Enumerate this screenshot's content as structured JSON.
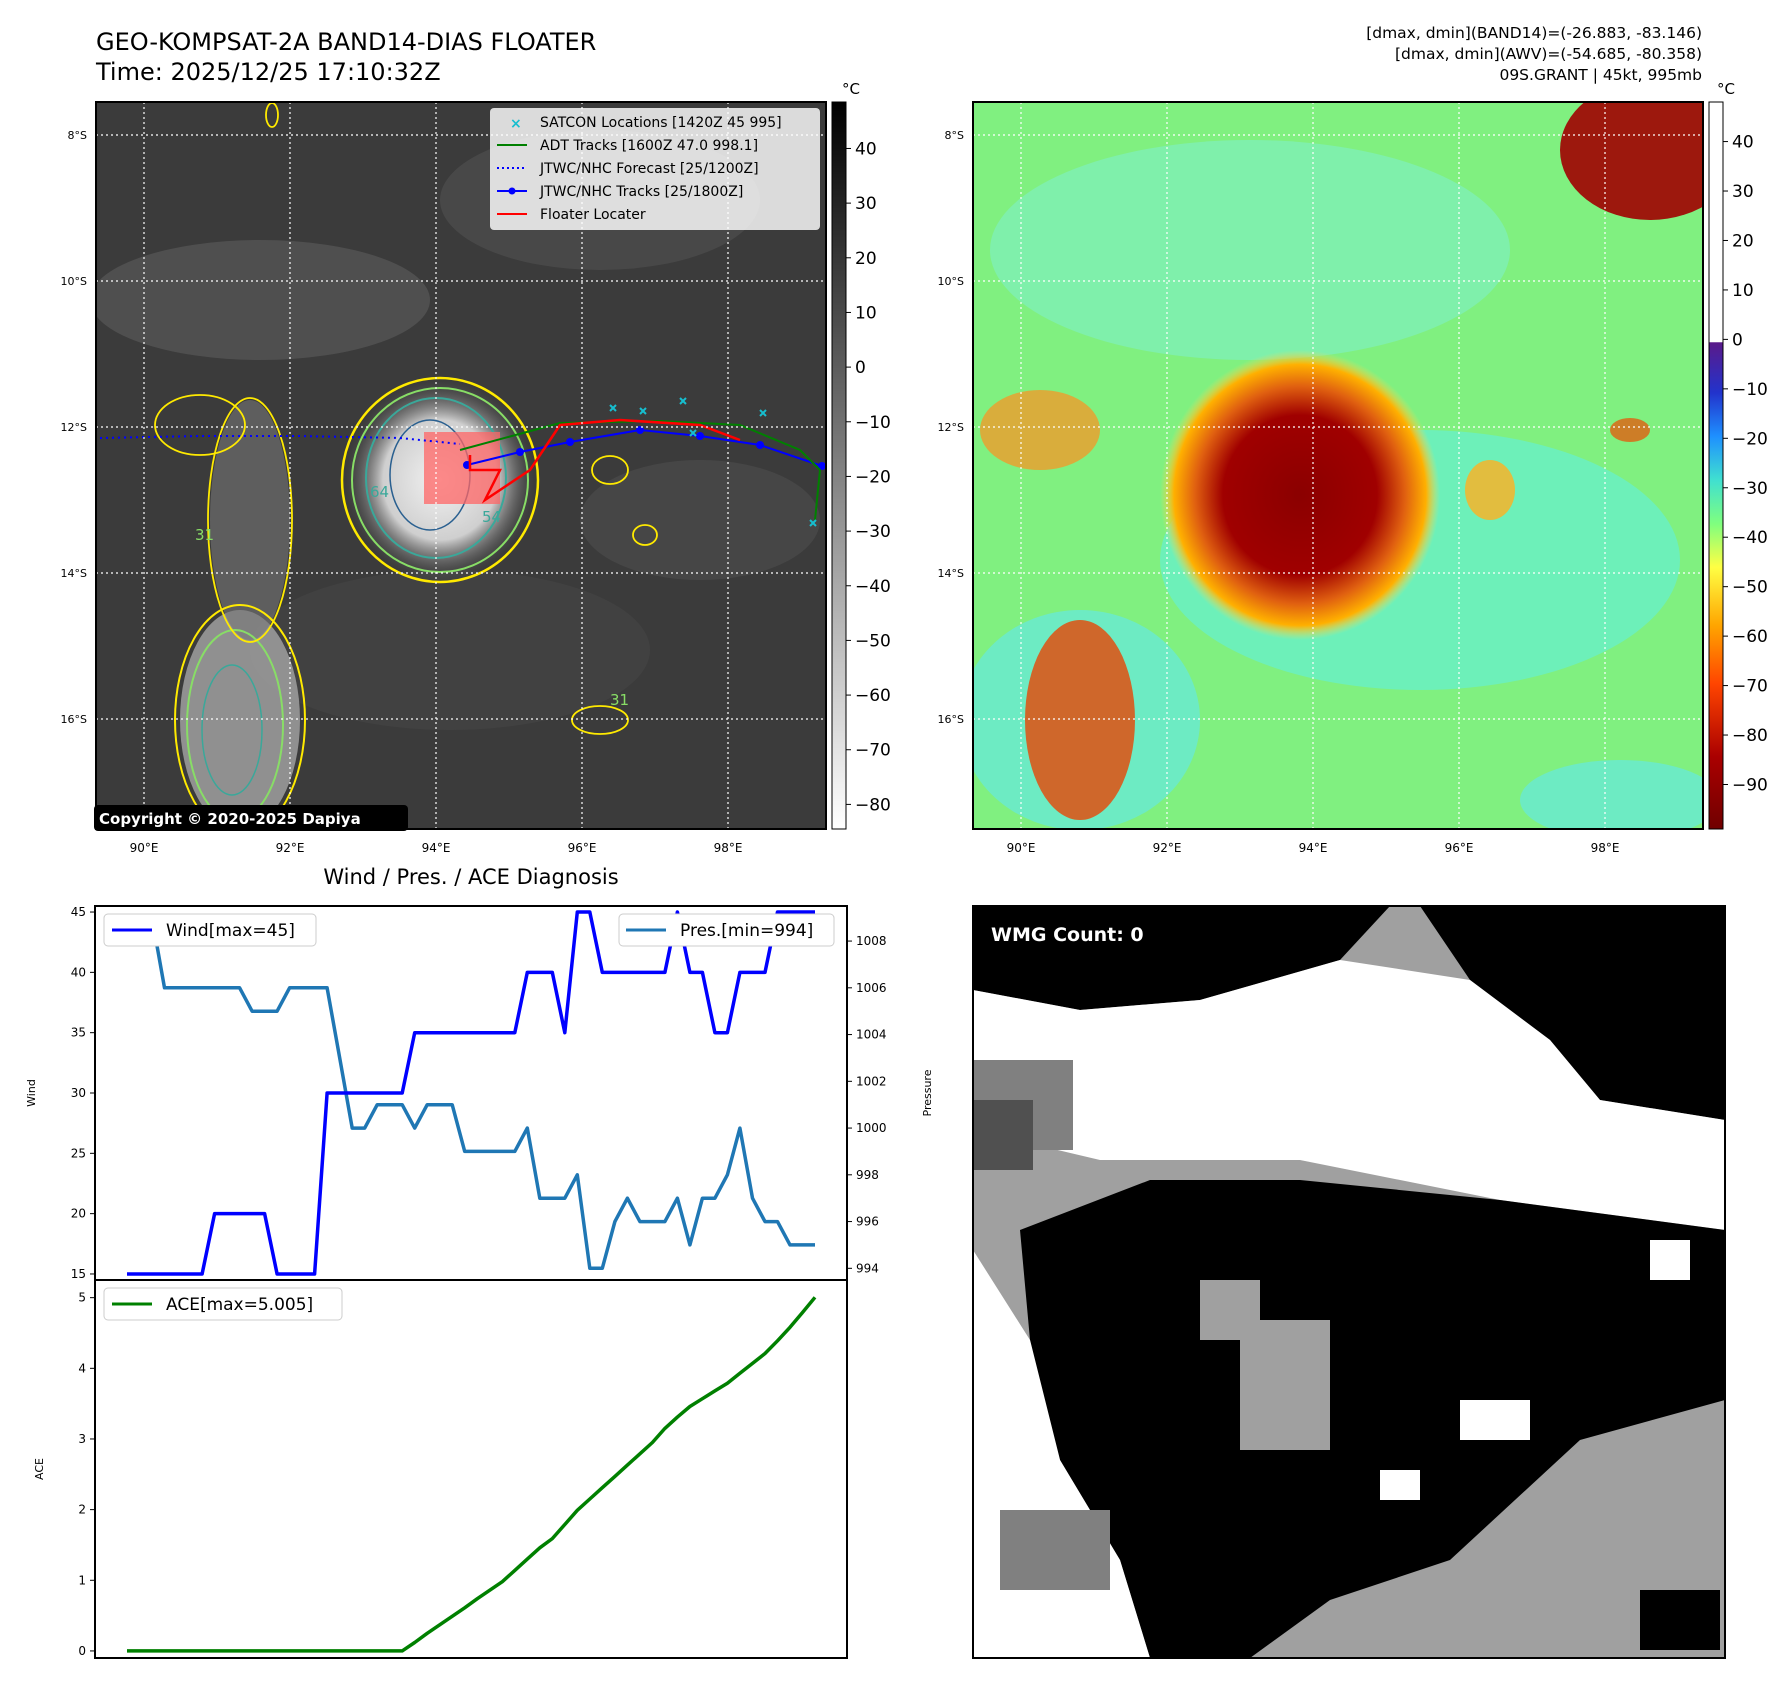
{
  "header": {
    "title_line1": "GEO-KOMPSAT-2A BAND14-DIAS FLOATER",
    "title_line2": "Time: 2025/12/25 17:10:32Z",
    "info_line1": "[dmax, dmin](BAND14)=(-26.883, -83.146)",
    "info_line2": "[dmax, dmin](AWV)=(-54.685, -80.358)",
    "info_line3": "09S.GRANT | 45kt, 995mb"
  },
  "copyright": "Copyright © 2020-2025 Dapiya",
  "map": {
    "lat_labels": [
      "8°S",
      "10°S",
      "12°S",
      "14°S",
      "16°S"
    ],
    "lon_labels": [
      "90°E",
      "92°E",
      "94°E",
      "96°E",
      "98°E"
    ],
    "contour_labels": [
      "64",
      "54",
      "31",
      "31"
    ],
    "legend": [
      {
        "label": "SATCON Locations [1420Z 45 995]",
        "color": "#17becf",
        "kind": "x-marker"
      },
      {
        "label": "ADT Tracks [1600Z 47.0 998.1]",
        "color": "#008000",
        "kind": "solid"
      },
      {
        "label": "JTWC/NHC Forecast [25/1200Z]",
        "color": "#0000ff",
        "kind": "dotted"
      },
      {
        "label": "JTWC/NHC Tracks [25/1800Z]",
        "color": "#0000ff",
        "kind": "line-dot"
      },
      {
        "label": "Floater Locater",
        "color": "#ff0000",
        "kind": "solid"
      }
    ]
  },
  "colorbar_gray": {
    "unit": "°C",
    "ticks": [
      "40",
      "30",
      "20",
      "10",
      "0",
      "−10",
      "−20",
      "−30",
      "−40",
      "−50",
      "−60",
      "−70",
      "−80"
    ]
  },
  "colorbar_color": {
    "unit": "°C",
    "ticks": [
      "40",
      "30",
      "20",
      "10",
      "0",
      "−10",
      "−20",
      "−30",
      "−40",
      "−50",
      "−60",
      "−70",
      "−80",
      "−90"
    ]
  },
  "wmg": {
    "label": "WMG Count: 0"
  },
  "chart_data": [
    {
      "type": "line",
      "title": "Wind / Pres. / ACE Diagnosis",
      "ylabel": "Wind",
      "y2label": "Pressure",
      "ylim": [
        14.5,
        45.5
      ],
      "y2lim": [
        993.5,
        1009.5
      ],
      "yticks": [
        "15",
        "20",
        "25",
        "30",
        "35",
        "40",
        "45"
      ],
      "y2ticks": [
        "994",
        "996",
        "998",
        "1000",
        "1002",
        "1004",
        "1006",
        "1008"
      ],
      "series": [
        {
          "name": "Wind[max=45]",
          "color": "#0000ff",
          "values": [
            15,
            15,
            15,
            15,
            15,
            15,
            15,
            20,
            20,
            20,
            20,
            20,
            15,
            15,
            15,
            15,
            30,
            30,
            30,
            30,
            30,
            30,
            30,
            35,
            35,
            35,
            35,
            35,
            35,
            35,
            35,
            35,
            40,
            40,
            40,
            35,
            45,
            45,
            40,
            40,
            40,
            40,
            40,
            40,
            45,
            40,
            40,
            35,
            35,
            40,
            40,
            40,
            45,
            45,
            45,
            45
          ]
        },
        {
          "name": "Pres.[min=994]",
          "color": "#1f77b4",
          "values": [
            1009,
            1009,
            1009,
            1006,
            1006,
            1006,
            1006,
            1006,
            1006,
            1006,
            1005,
            1005,
            1005,
            1006,
            1006,
            1006,
            1006,
            1003,
            1000,
            1000,
            1001,
            1001,
            1001,
            1000,
            1001,
            1001,
            1001,
            999,
            999,
            999,
            999,
            999,
            1000,
            997,
            997,
            997,
            998,
            994,
            994,
            996,
            997,
            996,
            996,
            996,
            997,
            995,
            997,
            997,
            998,
            1000,
            997,
            996,
            996,
            995,
            995,
            995
          ]
        }
      ],
      "legend": [
        "Wind[max=45]",
        "Pres.[min=994]"
      ]
    },
    {
      "type": "line",
      "ylabel": "ACE",
      "ylim": [
        -0.1,
        5.25
      ],
      "yticks": [
        "0",
        "1",
        "2",
        "3",
        "4",
        "5"
      ],
      "series": [
        {
          "name": "ACE[max=5.005]",
          "color": "#008000",
          "values": [
            0,
            0,
            0,
            0,
            0,
            0,
            0,
            0,
            0,
            0,
            0,
            0,
            0,
            0,
            0,
            0,
            0,
            0,
            0,
            0,
            0,
            0,
            0,
            0.12,
            0.25,
            0.37,
            0.49,
            0.61,
            0.74,
            0.86,
            0.98,
            1.14,
            1.3,
            1.46,
            1.59,
            1.79,
            1.99,
            2.15,
            2.31,
            2.47,
            2.63,
            2.79,
            2.95,
            3.15,
            3.31,
            3.46,
            3.57,
            3.68,
            3.79,
            3.93,
            4.07,
            4.21,
            4.39,
            4.58,
            4.79,
            5.005
          ]
        }
      ],
      "legend": [
        "ACE[max=5.005]"
      ]
    }
  ],
  "colors": {
    "wind": "#0000ff",
    "pressure": "#1f77b4",
    "ace": "#008000",
    "floater": "#ff0000",
    "satcon": "#17becf"
  }
}
